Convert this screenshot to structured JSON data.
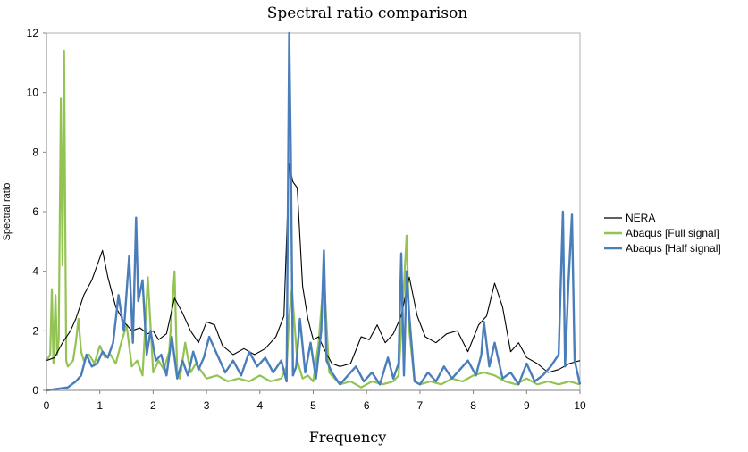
{
  "chart_data": {
    "type": "line",
    "title": "Spectral ratio comparison",
    "xlabel": "Frequency",
    "ylabel": "Spectral ratio",
    "xlim": [
      0,
      10
    ],
    "ylim": [
      0,
      12
    ],
    "xticks": [
      "0",
      "1",
      "2",
      "3",
      "4",
      "5",
      "6",
      "7",
      "8",
      "9",
      "10"
    ],
    "yticks": [
      "0",
      "2",
      "4",
      "6",
      "8",
      "10",
      "12"
    ],
    "grid": false,
    "legend_position": "right",
    "series": [
      {
        "name": "NERA",
        "color": "#000000",
        "x": [
          0,
          0.15,
          0.3,
          0.45,
          0.55,
          0.7,
          0.85,
          0.95,
          1.05,
          1.15,
          1.3,
          1.45,
          1.6,
          1.75,
          1.9,
          2.0,
          2.1,
          2.25,
          2.4,
          2.55,
          2.7,
          2.85,
          3.0,
          3.15,
          3.3,
          3.5,
          3.7,
          3.9,
          4.1,
          4.3,
          4.45,
          4.55,
          4.62,
          4.7,
          4.8,
          4.9,
          5.0,
          5.1,
          5.2,
          5.35,
          5.5,
          5.7,
          5.9,
          6.05,
          6.2,
          6.35,
          6.5,
          6.65,
          6.8,
          6.95,
          7.1,
          7.3,
          7.5,
          7.7,
          7.9,
          8.1,
          8.25,
          8.4,
          8.55,
          8.7,
          8.85,
          9.0,
          9.2,
          9.4,
          9.6,
          9.8,
          10.0
        ],
        "y": [
          1.0,
          1.1,
          1.6,
          2.0,
          2.4,
          3.2,
          3.7,
          4.2,
          4.7,
          3.8,
          2.8,
          2.3,
          2.0,
          2.1,
          1.9,
          2.0,
          1.7,
          1.9,
          3.1,
          2.6,
          2.0,
          1.6,
          2.3,
          2.2,
          1.5,
          1.2,
          1.4,
          1.2,
          1.4,
          1.8,
          2.5,
          7.6,
          7.0,
          6.8,
          3.5,
          2.4,
          1.7,
          1.8,
          1.4,
          0.9,
          0.8,
          0.9,
          1.8,
          1.7,
          2.2,
          1.6,
          1.9,
          2.5,
          3.8,
          2.5,
          1.8,
          1.6,
          1.9,
          2.0,
          1.3,
          2.2,
          2.5,
          3.6,
          2.8,
          1.3,
          1.6,
          1.1,
          0.9,
          0.6,
          0.7,
          0.9,
          1.0
        ]
      },
      {
        "name": "Abaqus [Full signal]",
        "color": "#92c353",
        "x": [
          0,
          0.07,
          0.1,
          0.13,
          0.17,
          0.2,
          0.23,
          0.27,
          0.3,
          0.33,
          0.37,
          0.4,
          0.45,
          0.5,
          0.55,
          0.6,
          0.65,
          0.7,
          0.8,
          0.9,
          1.0,
          1.1,
          1.2,
          1.3,
          1.4,
          1.5,
          1.6,
          1.7,
          1.8,
          1.9,
          2.0,
          2.1,
          2.2,
          2.3,
          2.4,
          2.45,
          2.5,
          2.6,
          2.7,
          2.8,
          3.0,
          3.2,
          3.4,
          3.6,
          3.8,
          4.0,
          4.2,
          4.4,
          4.5,
          4.55,
          4.6,
          4.7,
          4.8,
          4.9,
          5.0,
          5.1,
          5.2,
          5.3,
          5.5,
          5.7,
          5.9,
          6.1,
          6.3,
          6.5,
          6.6,
          6.7,
          6.75,
          6.8,
          6.9,
          7.0,
          7.2,
          7.4,
          7.6,
          7.8,
          8.0,
          8.2,
          8.4,
          8.6,
          8.8,
          9.0,
          9.2,
          9.4,
          9.6,
          9.8,
          10.0
        ],
        "y": [
          1.0,
          1.2,
          3.4,
          0.9,
          3.2,
          1.2,
          1.7,
          9.8,
          4.2,
          11.4,
          1.0,
          0.8,
          0.9,
          1.0,
          1.6,
          2.4,
          1.3,
          1.0,
          1.2,
          0.9,
          1.5,
          1.1,
          1.2,
          0.9,
          1.6,
          2.2,
          0.8,
          1.0,
          0.5,
          3.8,
          0.6,
          1.0,
          0.7,
          1.3,
          4.0,
          0.5,
          0.4,
          1.6,
          0.6,
          0.9,
          0.4,
          0.5,
          0.3,
          0.4,
          0.3,
          0.5,
          0.3,
          0.4,
          0.8,
          2.5,
          3.4,
          1.0,
          0.4,
          0.5,
          0.3,
          1.6,
          3.8,
          0.6,
          0.2,
          0.3,
          0.1,
          0.3,
          0.2,
          0.3,
          0.5,
          3.5,
          5.2,
          2.0,
          0.3,
          0.2,
          0.3,
          0.2,
          0.4,
          0.3,
          0.5,
          0.6,
          0.5,
          0.3,
          0.2,
          0.4,
          0.2,
          0.3,
          0.2,
          0.3,
          0.2
        ]
      },
      {
        "name": "Abaqus [Half signal]",
        "color": "#4a7ebb",
        "x": [
          0,
          0.2,
          0.4,
          0.55,
          0.65,
          0.75,
          0.85,
          0.95,
          1.05,
          1.15,
          1.25,
          1.35,
          1.45,
          1.55,
          1.62,
          1.68,
          1.72,
          1.8,
          1.88,
          1.95,
          2.05,
          2.15,
          2.25,
          2.35,
          2.45,
          2.55,
          2.65,
          2.75,
          2.85,
          2.95,
          3.05,
          3.2,
          3.35,
          3.5,
          3.65,
          3.8,
          3.95,
          4.1,
          4.25,
          4.4,
          4.5,
          4.55,
          4.58,
          4.62,
          4.68,
          4.75,
          4.85,
          4.95,
          5.05,
          5.15,
          5.2,
          5.25,
          5.35,
          5.5,
          5.65,
          5.8,
          5.95,
          6.1,
          6.25,
          6.4,
          6.5,
          6.6,
          6.65,
          6.7,
          6.75,
          6.8,
          6.9,
          7.0,
          7.15,
          7.3,
          7.45,
          7.6,
          7.75,
          7.9,
          8.05,
          8.15,
          8.2,
          8.3,
          8.4,
          8.55,
          8.7,
          8.85,
          9.0,
          9.15,
          9.3,
          9.45,
          9.6,
          9.68,
          9.72,
          9.78,
          9.85,
          9.9,
          10.0
        ],
        "y": [
          0,
          0.05,
          0.1,
          0.3,
          0.5,
          1.2,
          0.8,
          0.9,
          1.3,
          1.1,
          1.6,
          3.2,
          2.0,
          4.5,
          1.6,
          5.8,
          3.0,
          3.7,
          1.2,
          2.0,
          1.0,
          1.2,
          0.5,
          1.8,
          0.4,
          1.0,
          0.5,
          1.3,
          0.7,
          1.1,
          1.8,
          1.2,
          0.6,
          1.0,
          0.5,
          1.3,
          0.8,
          1.1,
          0.6,
          1.0,
          0.3,
          12.0,
          8.0,
          0.5,
          0.8,
          2.4,
          0.6,
          1.6,
          0.4,
          2.0,
          4.7,
          1.0,
          0.6,
          0.2,
          0.5,
          0.8,
          0.3,
          0.6,
          0.2,
          1.1,
          0.4,
          0.9,
          4.6,
          0.5,
          4.0,
          2.5,
          0.3,
          0.2,
          0.6,
          0.3,
          0.8,
          0.4,
          0.7,
          1.0,
          0.5,
          1.2,
          2.3,
          0.8,
          1.6,
          0.4,
          0.6,
          0.2,
          0.9,
          0.3,
          0.5,
          0.8,
          1.2,
          6.0,
          0.8,
          3.5,
          5.9,
          1.0,
          0.2
        ]
      }
    ]
  }
}
